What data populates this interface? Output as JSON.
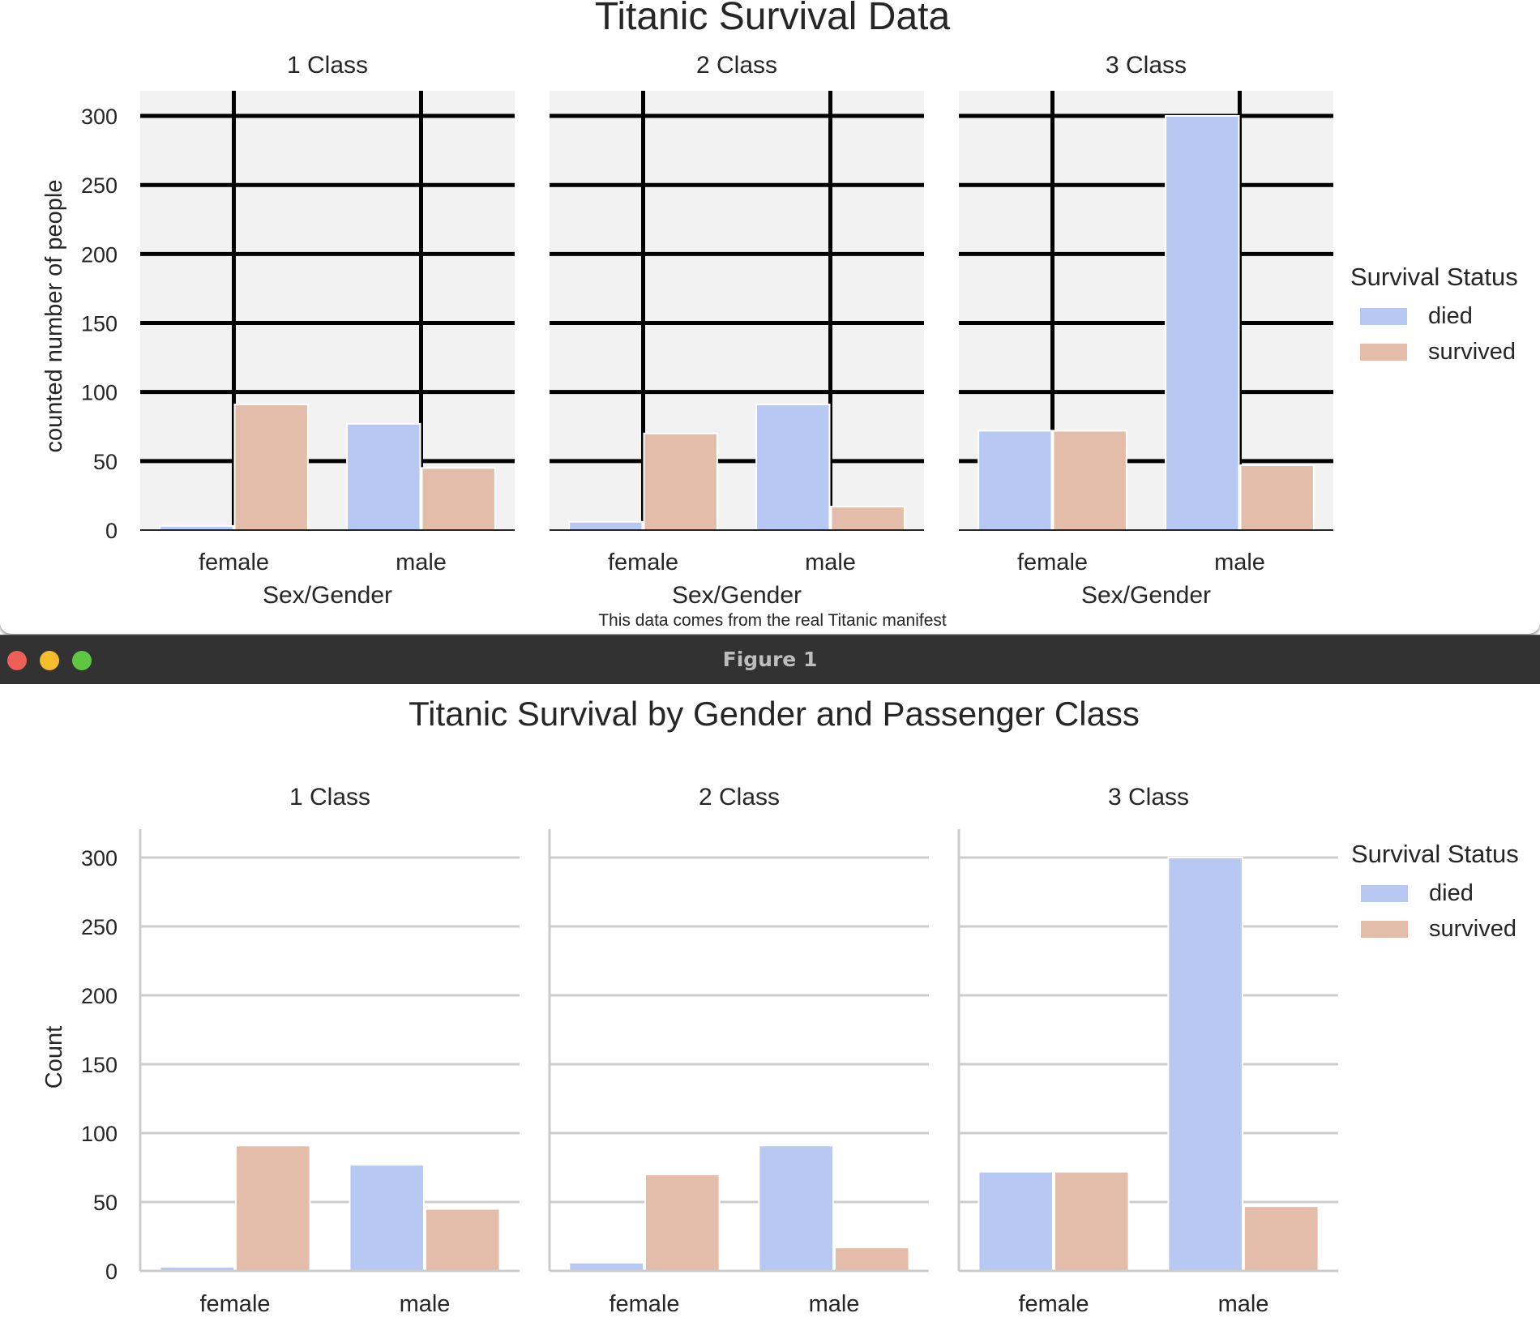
{
  "colors": {
    "died": "#b7c9f2",
    "survived": "#e4bdaa",
    "back_panel_bg": "#f2f2f2",
    "back_grid": "#000000",
    "front_grid": "#cccccc",
    "titlebar": "#323232"
  },
  "back_figure": {
    "footnote": "This data comes from the real Titanic manifest"
  },
  "front_window": {
    "title": "Figure 1",
    "buttons": [
      "close",
      "minimize",
      "zoom"
    ]
  },
  "chart_data": [
    {
      "type": "bar",
      "title": "Titanic Survival Data",
      "facets": [
        "1 Class",
        "2 Class",
        "3 Class"
      ],
      "categories": [
        "female",
        "male"
      ],
      "xlabel": "Sex/Gender",
      "ylabel": "counted number of people",
      "ylim": [
        0,
        310
      ],
      "yticks": [
        0,
        50,
        100,
        150,
        200,
        250,
        300
      ],
      "grid": true,
      "legend_title": "Survival Status",
      "legend_position": "right",
      "series": [
        {
          "name": "died",
          "values": [
            [
              3,
              77
            ],
            [
              6,
              91
            ],
            [
              72,
              300
            ]
          ]
        },
        {
          "name": "survived",
          "values": [
            [
              91,
              45
            ],
            [
              70,
              17
            ],
            [
              72,
              47
            ]
          ]
        }
      ]
    },
    {
      "type": "bar",
      "title": "Titanic Survival by Gender and Passenger Class",
      "facets": [
        "1 Class",
        "2 Class",
        "3 Class"
      ],
      "categories": [
        "female",
        "male"
      ],
      "xlabel": "",
      "ylabel": "Count",
      "ylim": [
        0,
        310
      ],
      "yticks": [
        0,
        50,
        100,
        150,
        200,
        250,
        300
      ],
      "grid": true,
      "legend_title": "Survival Status",
      "legend_position": "right",
      "series": [
        {
          "name": "died",
          "values": [
            [
              3,
              77
            ],
            [
              6,
              91
            ],
            [
              72,
              300
            ]
          ]
        },
        {
          "name": "survived",
          "values": [
            [
              91,
              45
            ],
            [
              70,
              17
            ],
            [
              72,
              47
            ]
          ]
        }
      ]
    }
  ]
}
